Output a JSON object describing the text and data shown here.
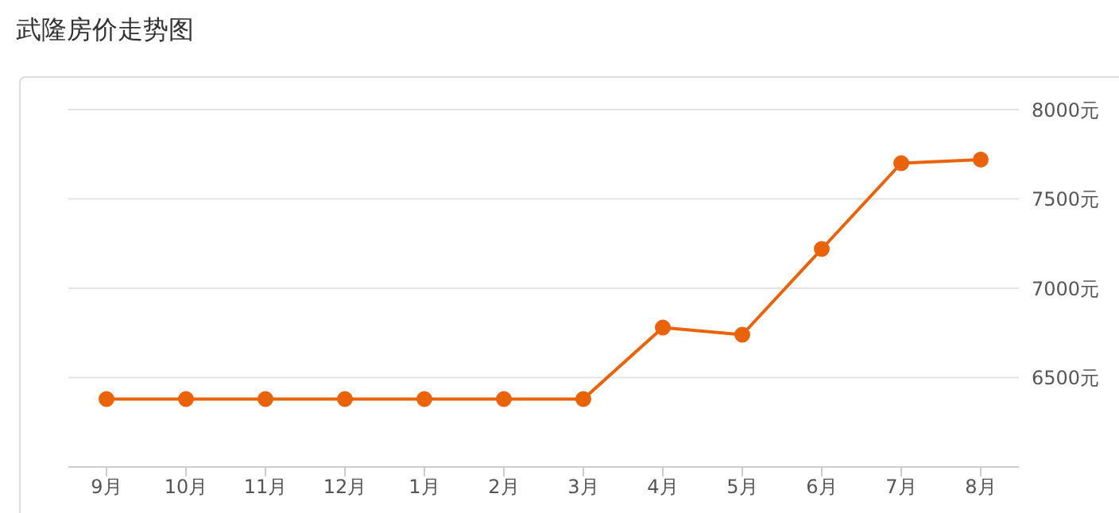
{
  "chart_data": {
    "type": "line",
    "title": "武隆房价走势图",
    "categories": [
      "9月",
      "10月",
      "11月",
      "12月",
      "1月",
      "2月",
      "3月",
      "4月",
      "5月",
      "6月",
      "7月",
      "8月"
    ],
    "series": [
      {
        "color": "#e8630a",
        "values": [
          6380,
          6380,
          6380,
          6380,
          6380,
          6380,
          6380,
          6780,
          6740,
          7220,
          7700,
          7720
        ]
      }
    ],
    "ylim": [
      6000,
      8000
    ],
    "yticks": [
      {
        "value": 6500,
        "label": "6500元"
      },
      {
        "value": 7000,
        "label": "7000元"
      },
      {
        "value": 7500,
        "label": "7500元"
      },
      {
        "value": 8000,
        "label": "8000元"
      }
    ],
    "grid": "y",
    "marker": "circle",
    "line_style": "solid",
    "legend": false
  }
}
